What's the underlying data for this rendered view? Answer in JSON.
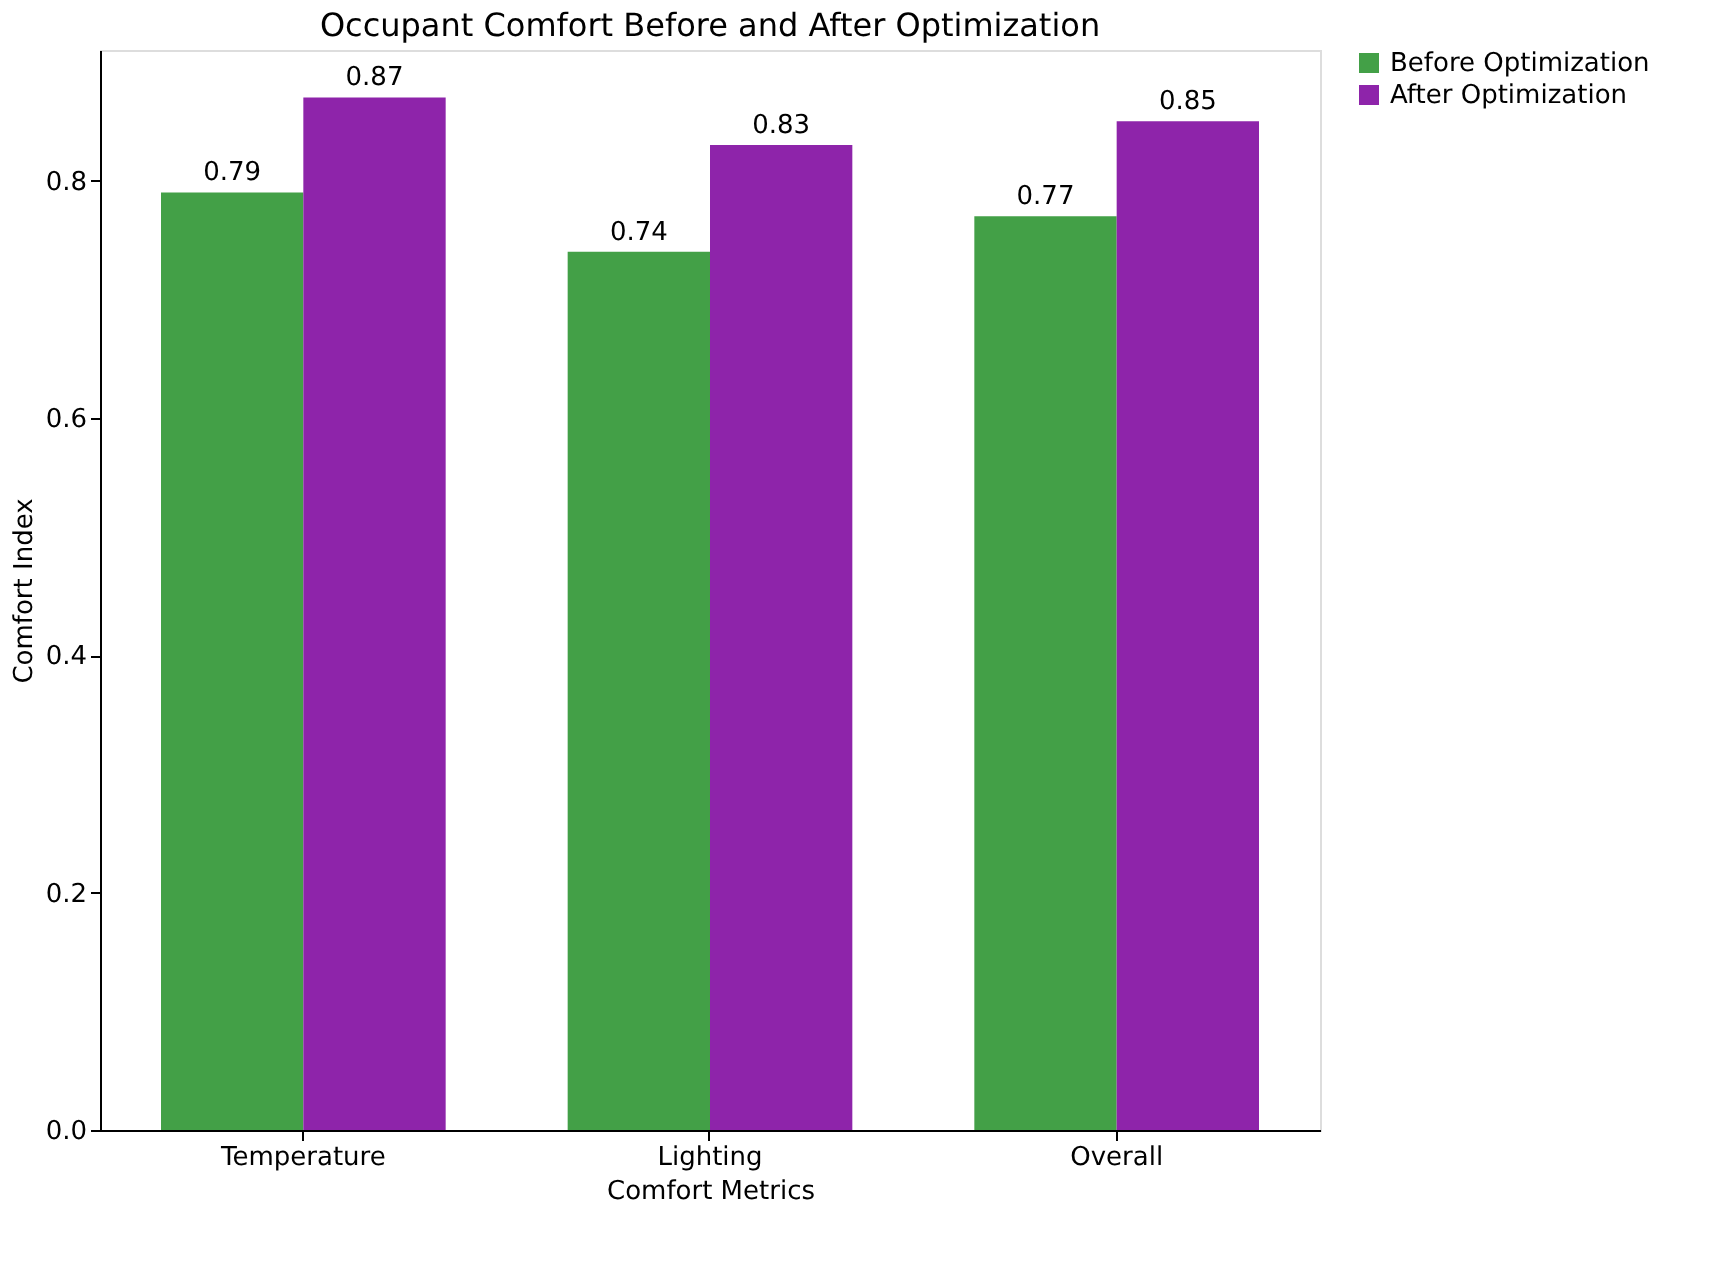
{
  "chart_data": {
    "type": "bar",
    "title": "Occupant Comfort Before and After Optimization",
    "xlabel": "Comfort Metrics",
    "ylabel": "Comfort Index",
    "categories": [
      "Temperature",
      "Lighting",
      "Overall"
    ],
    "series": [
      {
        "name": "Before Optimization",
        "color": "#43a047",
        "values": [
          0.79,
          0.74,
          0.77
        ]
      },
      {
        "name": "After Optimization",
        "color": "#8e24aa",
        "values": [
          0.87,
          0.83,
          0.85
        ]
      }
    ],
    "ylim": [
      0,
      0.91
    ],
    "yticks": [
      {
        "value": 0,
        "label": "0.0"
      },
      0.2,
      0.4,
      0.6,
      0.8
    ],
    "data_labels": true,
    "legend": "top right",
    "grid": false
  }
}
